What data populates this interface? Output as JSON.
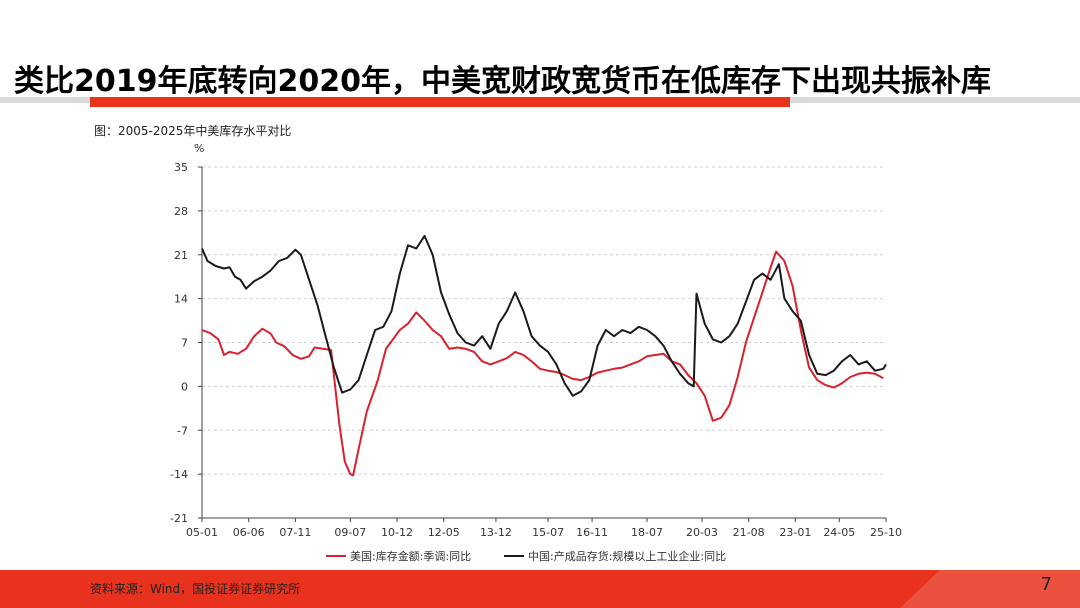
{
  "slide": {
    "title": "类比2019年底转向2020年，中美宽财政宽货币在低库存下出现共振补库",
    "caption": "图：2005-2025年中美库存水平对比",
    "source": "资料来源：Wind，国投证券证券研究所",
    "page_number": "7",
    "accent_color": "#e8321e"
  },
  "chart_data": {
    "type": "line",
    "ylabel": "%",
    "ylim": [
      -21,
      35
    ],
    "yticks": [
      "35",
      "28",
      "21",
      "14",
      "7",
      "0",
      "-7",
      "-14",
      "-21"
    ],
    "x_range": [
      "2005-01",
      "2025-10"
    ],
    "xticks": [
      "05-01",
      "06-06",
      "07-11",
      "09-07",
      "10-12",
      "12-05",
      "13-12",
      "15-07",
      "16-11",
      "18-07",
      "20-03",
      "21-08",
      "23-01",
      "24-05",
      "25-10"
    ],
    "grid": "horizontal dashed",
    "legend": "bottom",
    "series": [
      {
        "name": "美国:库存金额:季调:同比",
        "color": "#d9202c",
        "points": [
          [
            "2005-01",
            9.0
          ],
          [
            "2005-04",
            8.5
          ],
          [
            "2005-07",
            7.5
          ],
          [
            "2005-09",
            5.0
          ],
          [
            "2005-11",
            5.5
          ],
          [
            "2006-02",
            5.2
          ],
          [
            "2006-05",
            6.0
          ],
          [
            "2006-08",
            8.0
          ],
          [
            "2006-11",
            9.2
          ],
          [
            "2007-02",
            8.4
          ],
          [
            "2007-04",
            7.0
          ],
          [
            "2007-07",
            6.4
          ],
          [
            "2007-10",
            5.0
          ],
          [
            "2008-01",
            4.4
          ],
          [
            "2008-04",
            4.8
          ],
          [
            "2008-06",
            6.2
          ],
          [
            "2008-09",
            6.0
          ],
          [
            "2008-12",
            5.8
          ],
          [
            "2009-03",
            -6.0
          ],
          [
            "2009-05",
            -12.0
          ],
          [
            "2009-07",
            -14.0
          ],
          [
            "2009-08",
            -14.2
          ],
          [
            "2009-10",
            -10.0
          ],
          [
            "2010-01",
            -4.0
          ],
          [
            "2010-05",
            1.0
          ],
          [
            "2010-08",
            6.0
          ],
          [
            "2010-11",
            7.8
          ],
          [
            "2011-01",
            9.0
          ],
          [
            "2011-04",
            10.0
          ],
          [
            "2011-07",
            11.8
          ],
          [
            "2011-10",
            10.5
          ],
          [
            "2012-01",
            9.0
          ],
          [
            "2012-04",
            8.0
          ],
          [
            "2012-07",
            6.0
          ],
          [
            "2012-10",
            6.2
          ],
          [
            "2013-01",
            6.0
          ],
          [
            "2013-04",
            5.5
          ],
          [
            "2013-07",
            4.0
          ],
          [
            "2013-10",
            3.5
          ],
          [
            "2014-01",
            4.0
          ],
          [
            "2014-04",
            4.5
          ],
          [
            "2014-07",
            5.5
          ],
          [
            "2014-10",
            5.0
          ],
          [
            "2015-01",
            4.0
          ],
          [
            "2015-04",
            2.8
          ],
          [
            "2015-07",
            2.5
          ],
          [
            "2015-10",
            2.3
          ],
          [
            "2016-01",
            1.8
          ],
          [
            "2016-04",
            1.2
          ],
          [
            "2016-07",
            1.0
          ],
          [
            "2016-10",
            1.5
          ],
          [
            "2017-01",
            2.2
          ],
          [
            "2017-04",
            2.5
          ],
          [
            "2017-07",
            2.8
          ],
          [
            "2017-10",
            3.0
          ],
          [
            "2018-01",
            3.5
          ],
          [
            "2018-04",
            4.0
          ],
          [
            "2018-07",
            4.8
          ],
          [
            "2018-10",
            5.0
          ],
          [
            "2019-01",
            5.2
          ],
          [
            "2019-04",
            4.0
          ],
          [
            "2019-07",
            3.5
          ],
          [
            "2019-10",
            1.8
          ],
          [
            "2020-01",
            0.5
          ],
          [
            "2020-04",
            -1.5
          ],
          [
            "2020-07",
            -5.5
          ],
          [
            "2020-10",
            -5.0
          ],
          [
            "2021-01",
            -3.0
          ],
          [
            "2021-04",
            1.5
          ],
          [
            "2021-07",
            7.0
          ],
          [
            "2021-10",
            11.0
          ],
          [
            "2022-01",
            15.0
          ],
          [
            "2022-04",
            19.0
          ],
          [
            "2022-06",
            21.5
          ],
          [
            "2022-09",
            20.0
          ],
          [
            "2022-12",
            16.0
          ],
          [
            "2023-03",
            9.0
          ],
          [
            "2023-06",
            3.0
          ],
          [
            "2023-09",
            1.0
          ],
          [
            "2023-12",
            0.2
          ],
          [
            "2024-03",
            -0.2
          ],
          [
            "2024-06",
            0.5
          ],
          [
            "2024-09",
            1.5
          ],
          [
            "2024-12",
            2.0
          ],
          [
            "2025-03",
            2.2
          ],
          [
            "2025-06",
            2.0
          ],
          [
            "2025-09",
            1.3
          ]
        ]
      },
      {
        "name": "中国:产成品存货:规模以上工业企业:同比",
        "color": "#1a1a1a",
        "points": [
          [
            "2005-01",
            22.0
          ],
          [
            "2005-03",
            20.0
          ],
          [
            "2005-06",
            19.2
          ],
          [
            "2005-09",
            18.8
          ],
          [
            "2005-11",
            19.0
          ],
          [
            "2006-01",
            17.5
          ],
          [
            "2006-03",
            17.0
          ],
          [
            "2006-05",
            15.6
          ],
          [
            "2006-08",
            16.8
          ],
          [
            "2006-11",
            17.5
          ],
          [
            "2007-02",
            18.5
          ],
          [
            "2007-05",
            20.0
          ],
          [
            "2007-08",
            20.5
          ],
          [
            "2007-11",
            21.8
          ],
          [
            "2008-01",
            21.0
          ],
          [
            "2008-04",
            17.0
          ],
          [
            "2008-07",
            13.0
          ],
          [
            "2008-10",
            8.0
          ],
          [
            "2009-01",
            3.0
          ],
          [
            "2009-04",
            -1.0
          ],
          [
            "2009-07",
            -0.5
          ],
          [
            "2009-10",
            1.0
          ],
          [
            "2010-01",
            5.0
          ],
          [
            "2010-04",
            9.0
          ],
          [
            "2010-07",
            9.5
          ],
          [
            "2010-10",
            12.0
          ],
          [
            "2011-01",
            18.0
          ],
          [
            "2011-04",
            22.5
          ],
          [
            "2011-07",
            22.0
          ],
          [
            "2011-10",
            24.0
          ],
          [
            "2012-01",
            21.0
          ],
          [
            "2012-04",
            15.0
          ],
          [
            "2012-07",
            11.5
          ],
          [
            "2012-10",
            8.5
          ],
          [
            "2013-01",
            7.0
          ],
          [
            "2013-04",
            6.5
          ],
          [
            "2013-07",
            8.0
          ],
          [
            "2013-10",
            6.0
          ],
          [
            "2014-01",
            10.0
          ],
          [
            "2014-04",
            12.0
          ],
          [
            "2014-07",
            15.0
          ],
          [
            "2014-10",
            12.0
          ],
          [
            "2015-01",
            8.0
          ],
          [
            "2015-04",
            6.5
          ],
          [
            "2015-07",
            5.5
          ],
          [
            "2015-10",
            3.5
          ],
          [
            "2016-01",
            0.5
          ],
          [
            "2016-04",
            -1.5
          ],
          [
            "2016-07",
            -0.8
          ],
          [
            "2016-10",
            1.0
          ],
          [
            "2017-01",
            6.5
          ],
          [
            "2017-04",
            9.0
          ],
          [
            "2017-07",
            8.0
          ],
          [
            "2017-10",
            9.0
          ],
          [
            "2018-01",
            8.5
          ],
          [
            "2018-04",
            9.5
          ],
          [
            "2018-07",
            9.0
          ],
          [
            "2018-10",
            8.0
          ],
          [
            "2019-01",
            6.5
          ],
          [
            "2019-04",
            4.0
          ],
          [
            "2019-07",
            2.0
          ],
          [
            "2019-10",
            0.5
          ],
          [
            "2019-12",
            0.0
          ],
          [
            "2020-01",
            14.8
          ],
          [
            "2020-04",
            10.0
          ],
          [
            "2020-07",
            7.5
          ],
          [
            "2020-10",
            7.0
          ],
          [
            "2021-01",
            8.0
          ],
          [
            "2021-04",
            10.0
          ],
          [
            "2021-07",
            13.5
          ],
          [
            "2021-10",
            17.0
          ],
          [
            "2022-01",
            18.0
          ],
          [
            "2022-04",
            17.0
          ],
          [
            "2022-07",
            19.5
          ],
          [
            "2022-09",
            14.0
          ],
          [
            "2022-12",
            12.0
          ],
          [
            "2023-03",
            10.5
          ],
          [
            "2023-06",
            5.0
          ],
          [
            "2023-09",
            2.0
          ],
          [
            "2023-12",
            1.8
          ],
          [
            "2024-03",
            2.5
          ],
          [
            "2024-06",
            4.0
          ],
          [
            "2024-09",
            5.0
          ],
          [
            "2024-12",
            3.5
          ],
          [
            "2025-03",
            4.0
          ],
          [
            "2025-06",
            2.5
          ],
          [
            "2025-09",
            2.8
          ],
          [
            "2025-10",
            3.5
          ]
        ]
      }
    ]
  }
}
